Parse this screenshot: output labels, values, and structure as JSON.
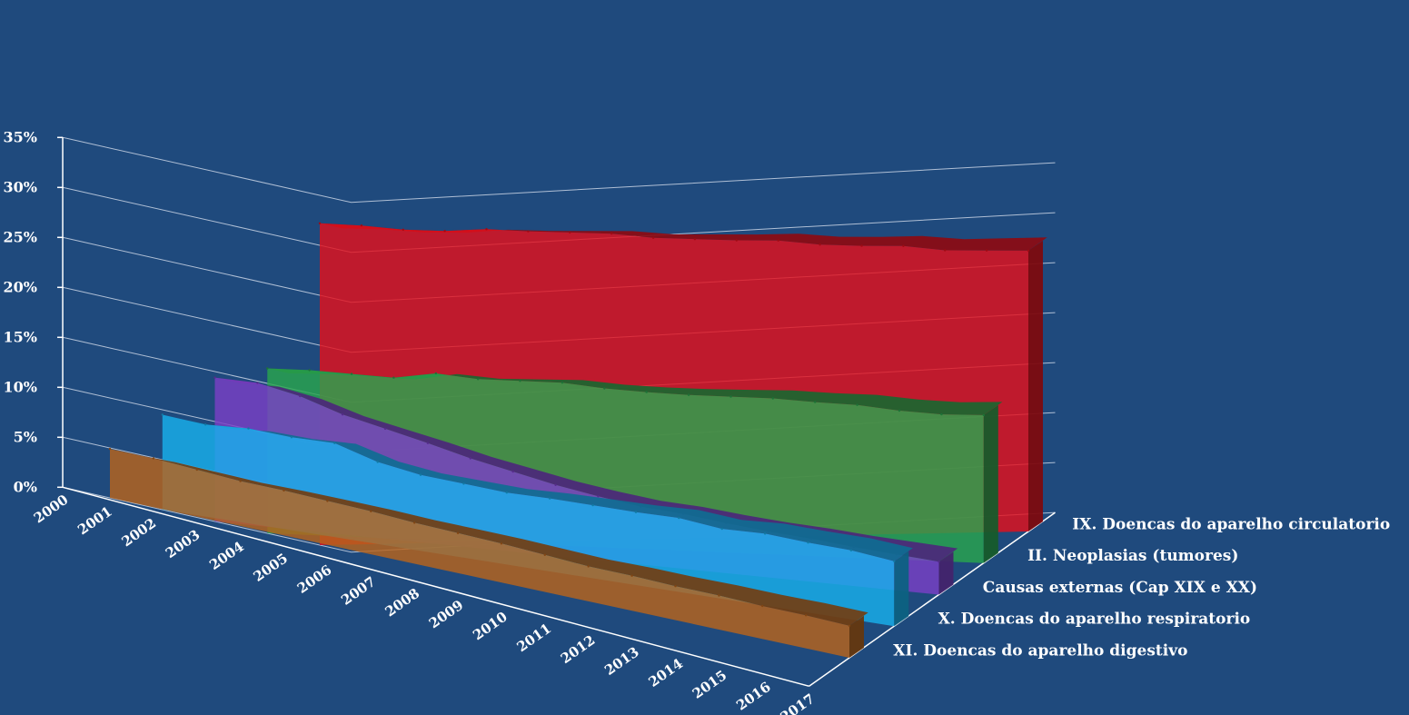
{
  "chart_data": {
    "type": "area",
    "three_d": true,
    "categories": [
      "2000",
      "2001",
      "2002",
      "2003",
      "2004",
      "2005",
      "2006",
      "2007",
      "2008",
      "2009",
      "2010",
      "2011",
      "2012",
      "2013",
      "2014",
      "2015",
      "2016",
      "2017"
    ],
    "ylim": [
      0,
      35
    ],
    "y_ticks": [
      "0%",
      "5%",
      "10%",
      "15%",
      "20%",
      "25%",
      "30%",
      "35%"
    ],
    "grid": true,
    "legend": "series labels along depth axis (right)",
    "series": [
      {
        "name": "IX. Doencas do aparelho circulatorio",
        "color": "#e3101c",
        "values": [
          32.2,
          31.9,
          31.4,
          31.2,
          31.3,
          31.0,
          30.8,
          30.6,
          30.1,
          29.9,
          29.7,
          29.6,
          29.1,
          28.9,
          28.8,
          28.3,
          28.2,
          28.1
        ]
      },
      {
        "name": "II. Neoplasias (tumores)",
        "color": "#2aa54e",
        "values": [
          16.5,
          16.5,
          16.3,
          16.1,
          16.7,
          16.3,
          16.3,
          16.3,
          15.9,
          15.7,
          15.6,
          15.6,
          15.6,
          15.4,
          15.3,
          14.9,
          14.7,
          14.8
        ]
      },
      {
        "name": "Causas externas (Cap XIX e XX)",
        "color": "#7a3fc6",
        "values": [
          14.4,
          14.3,
          13.4,
          12.0,
          11.0,
          10.0,
          8.9,
          8.0,
          7.1,
          6.4,
          5.8,
          5.5,
          5.0,
          4.6,
          4.3,
          3.9,
          3.6,
          3.3
        ]
      },
      {
        "name": "X.  Doencas do aparelho respiratorio",
        "color": "#18b0ec",
        "values": [
          9.5,
          9.2,
          9.5,
          9.3,
          9.4,
          8.2,
          7.6,
          7.4,
          7.2,
          7.3,
          7.3,
          7.3,
          7.4,
          7.0,
          7.2,
          7.0,
          6.9,
          6.5
        ]
      },
      {
        "name": "XI. Doencas do aparelho digestivo",
        "color": "#b8641c",
        "values": [
          4.9,
          4.9,
          4.7,
          4.5,
          4.5,
          4.4,
          4.3,
          4.1,
          4.0,
          3.9,
          3.7,
          3.5,
          3.5,
          3.4,
          3.4,
          3.3,
          3.3,
          3.2
        ]
      }
    ]
  }
}
